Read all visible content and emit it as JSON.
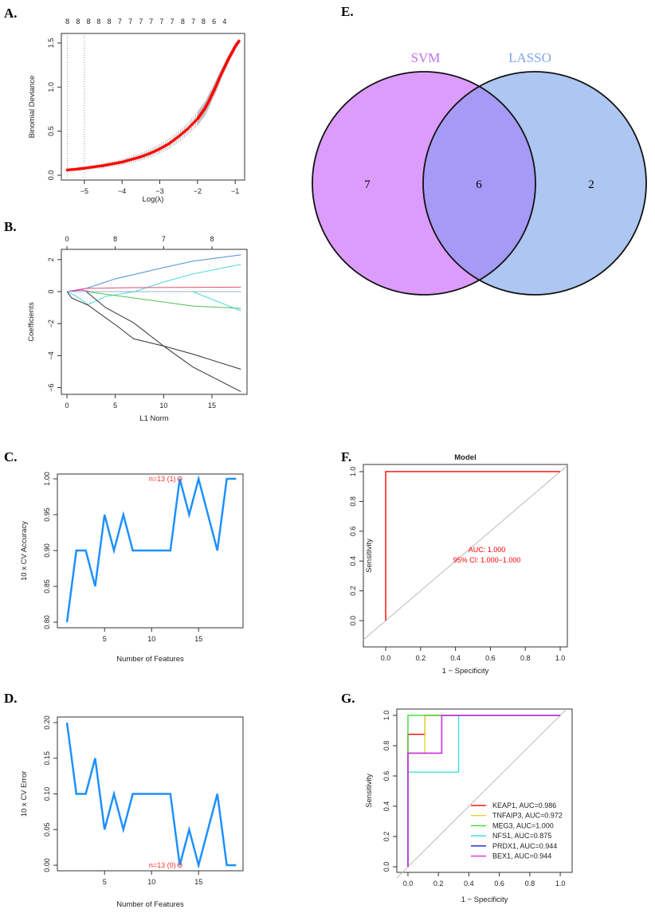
{
  "panels": {
    "A": "A.",
    "B": "B.",
    "C": "C.",
    "D": "D.",
    "E": "E.",
    "F": "F.",
    "G": "G."
  },
  "chart_data": [
    {
      "id": "A",
      "type": "scatter",
      "title": "",
      "xlabel": "Log(λ)",
      "ylabel": "Binomial Deviance",
      "xlim": [
        -5.61,
        -0.75
      ],
      "ylim": [
        -0.054,
        1.608
      ],
      "xticks": [
        -5,
        -4,
        -3,
        -2,
        -1
      ],
      "yticks": [
        0.0,
        0.5,
        1.0,
        1.5
      ],
      "xtick_labels": [
        "−5",
        "−4",
        "−3",
        "−2",
        "−1"
      ],
      "ytick_labels": [
        "0.0",
        "0.5",
        "1.0",
        "1.5"
      ],
      "vlines": [
        -5.45,
        -5.0
      ],
      "top_axis": {
        "x": [
          -5.45,
          -5.17,
          -4.89,
          -4.62,
          -4.34,
          -4.06,
          -3.78,
          -3.5,
          -3.23,
          -2.95,
          -2.67,
          -2.39,
          -2.11,
          -1.84,
          -1.56,
          -1.28
        ],
        "labels": [
          "8",
          "8",
          "8",
          "8",
          "8",
          "7",
          "7",
          "7",
          "7",
          "7",
          "7",
          "8",
          "7",
          "8",
          "6",
          "4"
        ]
      },
      "x": [
        -5.45,
        -5.2,
        -5.0,
        -4.75,
        -4.5,
        -4.25,
        -4.0,
        -3.75,
        -3.5,
        -3.25,
        -3.0,
        -2.75,
        -2.5,
        -2.25,
        -2.0,
        -1.9,
        -1.8,
        -1.7,
        -1.6,
        -1.5,
        -1.4,
        -1.3,
        -1.2,
        -1.1,
        -1.0,
        -0.9
      ],
      "y": [
        0.06,
        0.07,
        0.08,
        0.095,
        0.11,
        0.13,
        0.15,
        0.18,
        0.21,
        0.25,
        0.3,
        0.36,
        0.44,
        0.53,
        0.64,
        0.7,
        0.76,
        0.84,
        0.93,
        1.02,
        1.12,
        1.21,
        1.3,
        1.38,
        1.46,
        1.52
      ],
      "se": [
        0.02,
        0.02,
        0.02,
        0.025,
        0.03,
        0.03,
        0.035,
        0.04,
        0.045,
        0.05,
        0.055,
        0.06,
        0.065,
        0.07,
        0.08,
        0.08,
        0.08,
        0.08,
        0.07,
        0.07,
        0.06,
        0.05,
        0.05,
        0.04,
        0.04,
        0.03
      ],
      "point_color": "#ff0000",
      "errorbar_color": "#b0b0b0"
    },
    {
      "id": "B",
      "type": "line",
      "xlabel": "L1 Norm",
      "ylabel": "Coefficients",
      "xlim": [
        -0.58,
        18.63
      ],
      "ylim": [
        -6.42,
        2.64
      ],
      "xticks": [
        0,
        5,
        10,
        15
      ],
      "yticks": [
        2,
        0,
        -2,
        -4,
        -6
      ],
      "xtick_labels": [
        "0",
        "5",
        "10",
        "15"
      ],
      "ytick_labels": [
        "2",
        "0",
        "−2",
        "−4",
        "−6"
      ],
      "top_axis": {
        "x": [
          0,
          5,
          10,
          15
        ],
        "labels": [
          "0",
          "8",
          "7",
          "8"
        ]
      },
      "series": [
        {
          "name": "coef-1",
          "color": "#4a90d9",
          "x": [
            0,
            2,
            5,
            10,
            13,
            18
          ],
          "y": [
            0,
            0.2,
            0.8,
            1.5,
            1.9,
            2.3
          ]
        },
        {
          "name": "coef-2",
          "color": "#45d6e0",
          "x": [
            0,
            1,
            2.2,
            4,
            7,
            10,
            13,
            18
          ],
          "y": [
            0,
            -0.3,
            -0.8,
            -0.3,
            0,
            0.6,
            1.1,
            1.7
          ]
        },
        {
          "name": "coef-3",
          "color": "#e05070",
          "x": [
            0,
            2,
            7,
            18
          ],
          "y": [
            0,
            0.2,
            0.25,
            0.28
          ]
        },
        {
          "name": "coef-4",
          "color": "#d040d0",
          "x": [
            0,
            1.5,
            2.5,
            18
          ],
          "y": [
            0,
            0.1,
            0,
            0
          ]
        },
        {
          "name": "coef-5",
          "color": "#50c050",
          "x": [
            0,
            2,
            7,
            13,
            18
          ],
          "y": [
            0,
            0,
            -0.4,
            -0.9,
            -1.05
          ]
        },
        {
          "name": "coef-6",
          "color": "#45d6e0",
          "x": [
            0,
            13,
            18
          ],
          "y": [
            0,
            0,
            -1.2
          ]
        },
        {
          "name": "coef-7",
          "color": "#333333",
          "x": [
            0,
            0.5,
            2.2,
            5.3,
            6.9,
            10,
            13,
            18
          ],
          "y": [
            0,
            -0.4,
            -0.85,
            -2.2,
            -2.95,
            -3.4,
            -3.9,
            -4.85
          ]
        },
        {
          "name": "coef-8",
          "color": "#333333",
          "x": [
            0,
            2,
            4,
            6.9,
            10,
            13,
            18
          ],
          "y": [
            0,
            0,
            -1,
            -1.95,
            -3.4,
            -4.7,
            -6.25
          ]
        },
        {
          "name": "coef-9",
          "color": "#9ab0c8",
          "x": [
            0,
            18
          ],
          "y": [
            0,
            0
          ]
        }
      ]
    },
    {
      "id": "C",
      "type": "line",
      "xlabel": "Number of Features",
      "ylabel": "10 x CV Accuracy",
      "xlim": [
        -0.02,
        19.73
      ],
      "ylim": [
        0.7922,
        1.0067
      ],
      "xticks": [
        5,
        10,
        15
      ],
      "yticks": [
        0.8,
        0.85,
        0.9,
        0.95,
        1.0
      ],
      "xtick_labels": [
        "5",
        "10",
        "15"
      ],
      "ytick_labels": [
        "0.80",
        "0.85",
        "0.90",
        "0.95",
        "1.00"
      ],
      "x": [
        1,
        2,
        3,
        4,
        5,
        6,
        7,
        8,
        9,
        10,
        11,
        12,
        13,
        14,
        15,
        16,
        17,
        18,
        19
      ],
      "y": [
        0.8,
        0.9,
        0.9,
        0.85,
        0.95,
        0.9,
        0.95,
        0.9,
        0.9,
        0.9,
        0.9,
        0.9,
        1.0,
        0.95,
        1.0,
        0.95,
        0.9,
        1.0,
        1.0
      ],
      "color": "#1e90ff",
      "annotation": {
        "text": "n=13 (1)",
        "x": 13,
        "y": 1.0,
        "color": "#ff3030"
      }
    },
    {
      "id": "D",
      "type": "line",
      "xlabel": "Number of Features",
      "ylabel": "10 x CV Error",
      "xlim": [
        -0.02,
        19.73
      ],
      "ylim": [
        -0.0078,
        0.2078
      ],
      "xticks": [
        5,
        10,
        15
      ],
      "yticks": [
        0.0,
        0.05,
        0.1,
        0.15,
        0.2
      ],
      "xtick_labels": [
        "5",
        "10",
        "15"
      ],
      "ytick_labels": [
        "0.00",
        "0.05",
        "0.10",
        "0.15",
        "0.20"
      ],
      "x": [
        1,
        2,
        3,
        4,
        5,
        6,
        7,
        8,
        9,
        10,
        11,
        12,
        13,
        14,
        15,
        16,
        17,
        18,
        19
      ],
      "y": [
        0.2,
        0.1,
        0.1,
        0.15,
        0.05,
        0.1,
        0.05,
        0.1,
        0.1,
        0.1,
        0.1,
        0.1,
        0.0,
        0.05,
        0.0,
        0.05,
        0.1,
        0.0,
        0.0
      ],
      "color": "#1e90ff",
      "annotation": {
        "text": "n=13 (0)",
        "x": 13,
        "y": 0.0,
        "color": "#ff3030"
      }
    },
    {
      "id": "E",
      "type": "venn",
      "sets": [
        {
          "name": "SVM",
          "only": "7",
          "color": "#dc9cfc",
          "label_color": "#c070f0"
        },
        {
          "name": "LASSO",
          "only": "2",
          "color": "#adc6f2",
          "label_color": "#7fa6e8"
        }
      ],
      "intersection": "6",
      "intersection_color": "#a59af5"
    },
    {
      "id": "F",
      "type": "line",
      "title": "Model",
      "xlabel": "1 − Specificity",
      "ylabel": "Sensitivity",
      "xlim": [
        -0.128,
        1.041
      ],
      "ylim": [
        -0.176,
        1.048
      ],
      "xticks": [
        0,
        0.2,
        0.4,
        0.6,
        0.8,
        1.0
      ],
      "yticks": [
        0,
        0.2,
        0.4,
        0.6,
        0.8,
        1.0
      ],
      "xtick_labels": [
        "0.0",
        "0.2",
        "0.4",
        "0.6",
        "0.8",
        "1.0"
      ],
      "ytick_labels": [
        "0.0",
        "0.2",
        "0.4",
        "0.6",
        "0.8",
        "1.0"
      ],
      "series": [
        {
          "name": "Model",
          "color": "#ff0000",
          "x": [
            0,
            0,
            1
          ],
          "y": [
            0,
            1,
            1
          ]
        }
      ],
      "annotations": [
        "AUC: 1.000",
        "95% CI: 1.000−1.000"
      ],
      "annotation_color": "#ff0000"
    },
    {
      "id": "G",
      "type": "line",
      "xlabel": "1 − Specificity",
      "ylabel": "Sensitivity",
      "xlim": [
        -0.073,
        1.078
      ],
      "ylim": [
        -0.037,
        1.042
      ],
      "xticks": [
        0,
        0.2,
        0.4,
        0.6,
        0.8,
        1.0
      ],
      "yticks": [
        0,
        0.2,
        0.4,
        0.6,
        0.8,
        1.0
      ],
      "xtick_labels": [
        "0.0",
        "0.2",
        "0.4",
        "0.6",
        "0.8",
        "1.0"
      ],
      "ytick_labels": [
        "0.0",
        "0.2",
        "0.4",
        "0.6",
        "0.8",
        "1.0"
      ],
      "legend_position": "bottom-right",
      "series": [
        {
          "name": "KEAP1, AUC=0.986",
          "color": "#ff0000",
          "x": [
            0,
            0,
            0.111,
            0.111,
            1
          ],
          "y": [
            0,
            0.875,
            0.875,
            1,
            1
          ]
        },
        {
          "name": "TNFAIP3, AUC=0.972",
          "color": "#e6d52e",
          "x": [
            0,
            0,
            0.111,
            0.111,
            1
          ],
          "y": [
            0,
            0.75,
            0.75,
            1,
            1
          ]
        },
        {
          "name": "MEG3, AUC=1.000",
          "color": "#3ed63e",
          "x": [
            0,
            0,
            1
          ],
          "y": [
            0,
            1,
            1
          ]
        },
        {
          "name": "NFS1, AUC=0.875",
          "color": "#3fe0e0",
          "x": [
            0,
            0,
            0.333,
            0.333,
            1
          ],
          "y": [
            0,
            0.625,
            0.625,
            1,
            1
          ]
        },
        {
          "name": "PRDX1, AUC=0.944",
          "color": "#1a1ad0",
          "x": [
            0,
            0,
            0.222,
            0.222,
            1
          ],
          "y": [
            0,
            0.75,
            0.75,
            1,
            1
          ]
        },
        {
          "name": "BEX1, AUC=0.944",
          "color": "#dd2ee8",
          "x": [
            0,
            0,
            0.222,
            0.222,
            1
          ],
          "y": [
            0,
            0.75,
            0.75,
            1,
            1
          ]
        }
      ]
    }
  ]
}
